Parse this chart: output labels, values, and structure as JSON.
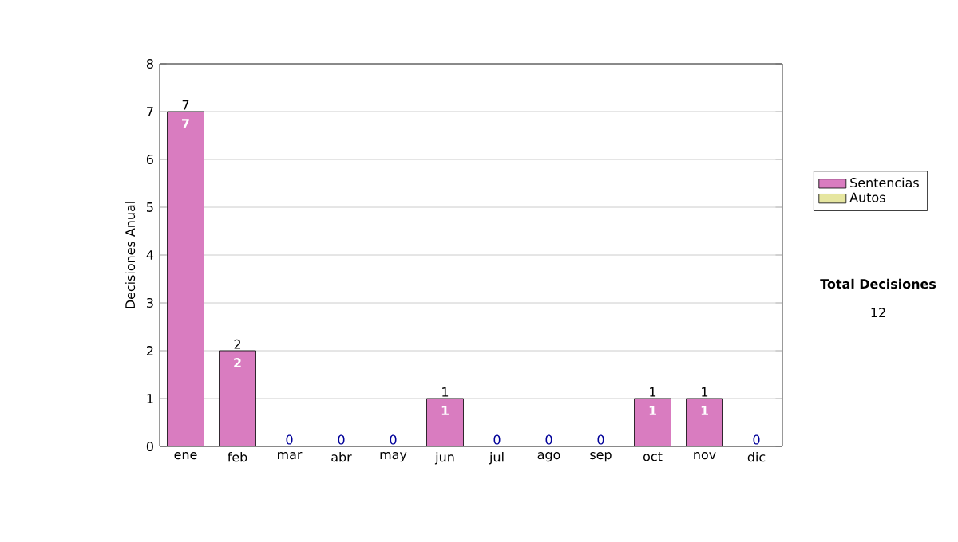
{
  "chart_data": {
    "type": "bar",
    "stacked": true,
    "ylabel": "Decisiones Anual",
    "categories": [
      "ene",
      "feb",
      "mar",
      "abr",
      "may",
      "jun",
      "jul",
      "ago",
      "sep",
      "oct",
      "nov",
      "dic"
    ],
    "series": [
      {
        "name": "Sentencias",
        "color": "#d97cc0",
        "values": [
          7,
          2,
          0,
          0,
          0,
          1,
          0,
          0,
          0,
          1,
          1,
          0
        ],
        "value_labels": [
          "7",
          "2",
          null,
          null,
          null,
          "1",
          null,
          null,
          null,
          "1",
          "1",
          null
        ]
      },
      {
        "name": "Autos",
        "color": "#e6e6a0",
        "values": [
          0,
          0,
          0,
          0,
          0,
          0,
          0,
          0,
          0,
          0,
          0,
          0
        ]
      }
    ],
    "totals": [
      "7",
      "2",
      "0",
      "0",
      "0",
      "1",
      "0",
      "0",
      "0",
      "1",
      "1",
      "0"
    ],
    "ylim": [
      0,
      8
    ],
    "yticks": [
      0,
      1,
      2,
      3,
      4,
      5,
      6,
      7,
      8
    ],
    "grid": "y",
    "legend": "right",
    "annotations": [
      "Total Decisiones",
      "12"
    ]
  }
}
